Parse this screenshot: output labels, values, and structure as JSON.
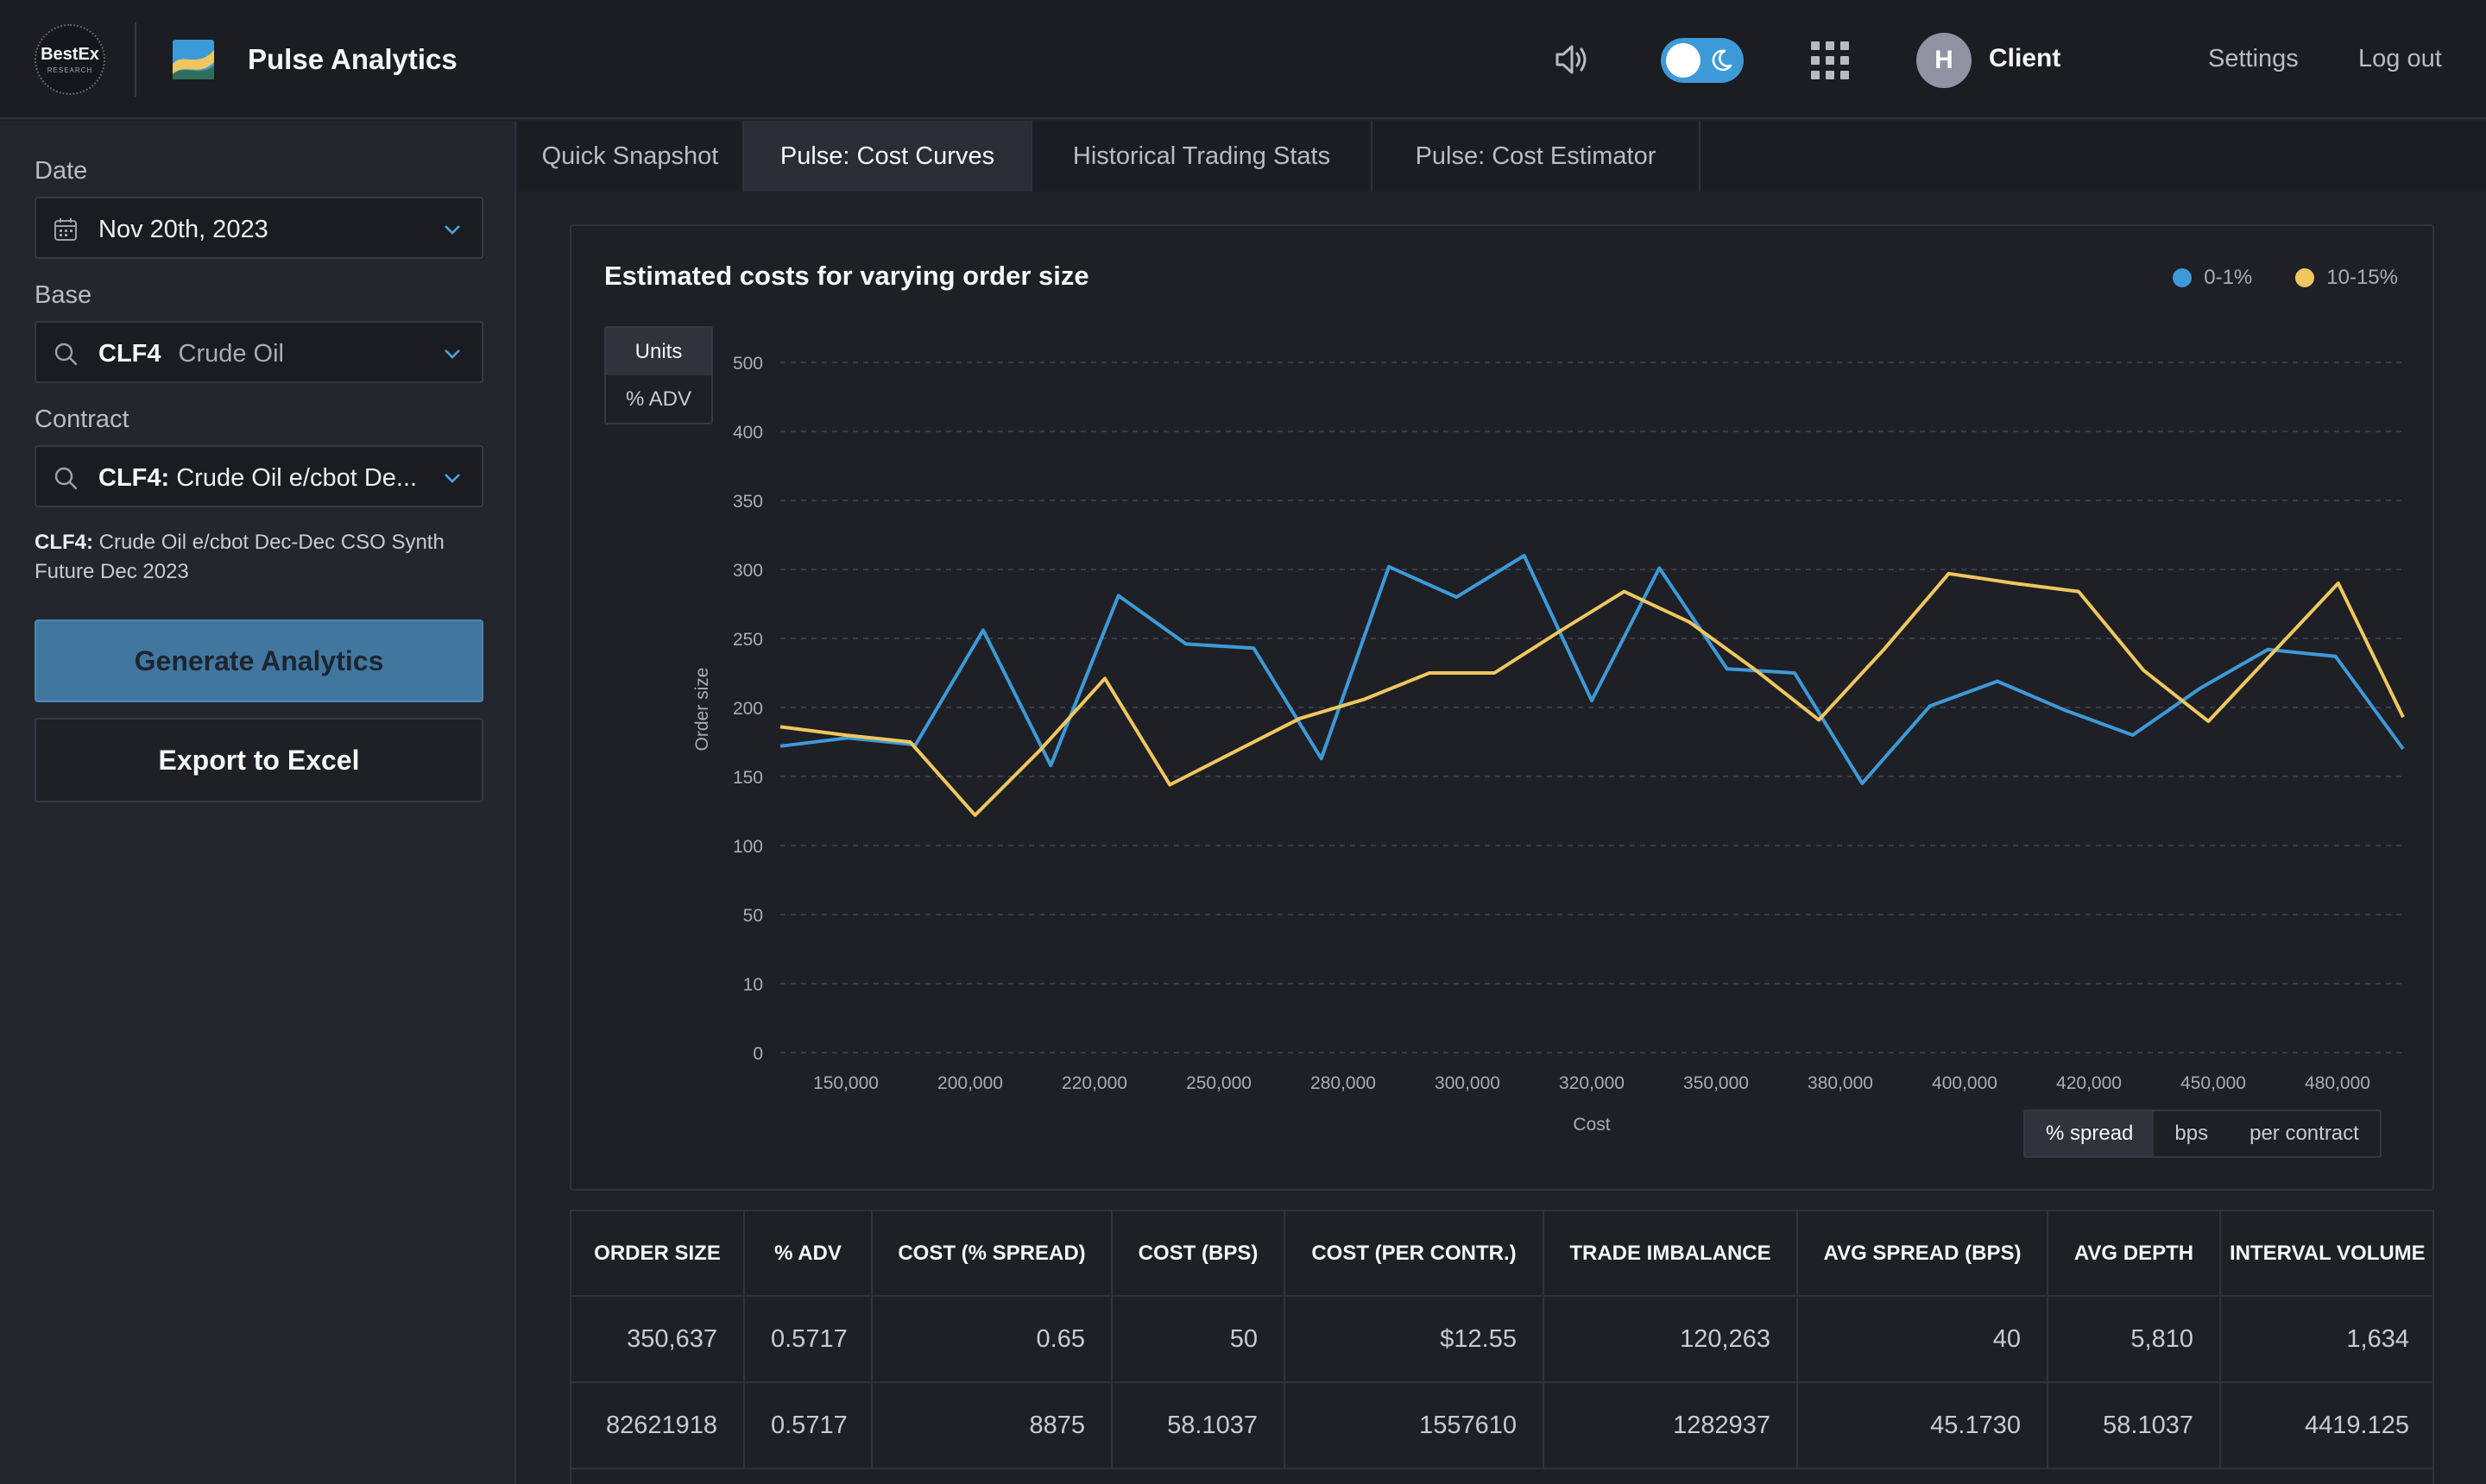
{
  "header": {
    "brand_logo_line1": "BestEx",
    "brand_logo_line2": "RESEARCH",
    "app_title": "Pulse Analytics",
    "user_initial": "H",
    "user_name": "Client",
    "settings_label": "Settings",
    "logout_label": "Log out",
    "theme_toggle": "dark"
  },
  "sidebar": {
    "date_label": "Date",
    "date_value": "Nov 20th, 2023",
    "base_label": "Base",
    "base_code": "CLF4",
    "base_name": "Crude Oil",
    "contract_label": "Contract",
    "contract_code": "CLF4:",
    "contract_name": "Crude Oil e/cbot De...",
    "contract_desc_code": "CLF4:",
    "contract_desc_text": " Crude Oil e/cbot Dec-Dec CSO Synth Future Dec 2023",
    "generate_label": "Generate Analytics",
    "export_label": "Export to Excel"
  },
  "tabs": [
    {
      "label": "Quick Snapshot",
      "active": false
    },
    {
      "label": "Pulse: Cost Curves",
      "active": true
    },
    {
      "label": "Historical Trading Stats",
      "active": false
    },
    {
      "label": "Pulse: Cost Estimator",
      "active": false
    }
  ],
  "chart_card": {
    "unit_toggle": [
      {
        "label": "Units",
        "active": true
      },
      {
        "label": "% ADV",
        "active": false
      }
    ],
    "cost_toggle": [
      {
        "label": "% spread",
        "active": true
      },
      {
        "label": "bps",
        "active": false
      },
      {
        "label": "per contract",
        "active": false
      }
    ]
  },
  "chart_data": {
    "type": "line",
    "title": "Estimated costs for varying order size",
    "xlabel": "Cost",
    "ylabel": "Order size",
    "legend_position": "top-right",
    "grid": true,
    "y_ticks": [
      "0",
      "10",
      "50",
      "100",
      "150",
      "200",
      "250",
      "300",
      "350",
      "400",
      "500"
    ],
    "x_ticks": [
      "150,000",
      "200,000",
      "220,000",
      "250,000",
      "280,000",
      "300,000",
      "320,000",
      "350,000",
      "380,000",
      "400,000",
      "420,000",
      "450,000",
      "480,000"
    ],
    "series": [
      {
        "name": "0-1%",
        "color": "#3d9ad8",
        "values": [
          172,
          178,
          173,
          256,
          158,
          281,
          246,
          243,
          163,
          302,
          280,
          310,
          205,
          301,
          228,
          225,
          145,
          201,
          219,
          198,
          180,
          214,
          242,
          237,
          170
        ]
      },
      {
        "name": "10-15%",
        "color": "#f0c75e",
        "values": [
          186,
          180,
          175,
          122,
          169,
          221,
          144,
          168,
          192,
          206,
          225,
          225,
          255,
          284,
          262,
          228,
          191,
          242,
          297,
          290,
          284,
          227,
          190,
          240,
          290,
          193
        ]
      }
    ]
  },
  "table": {
    "columns": [
      "ORDER SIZE",
      "% ADV",
      "COST (% SPREAD)",
      "COST (BPS)",
      "COST (PER CONTR.)",
      "TRADE IMBALANCE",
      "AVG SPREAD (BPS)",
      "AVG DEPTH",
      "INTERVAL VOLUME"
    ],
    "rows": [
      [
        "350,637",
        "0.5717",
        "0.65",
        "50",
        "$12.55",
        "120,263",
        "40",
        "5,810",
        "1,634"
      ],
      [
        "82621918",
        "0.5717",
        "8875",
        "58.1037",
        "1557610",
        "1282937",
        "45.1730",
        "58.1037",
        "4419.125"
      ]
    ]
  }
}
